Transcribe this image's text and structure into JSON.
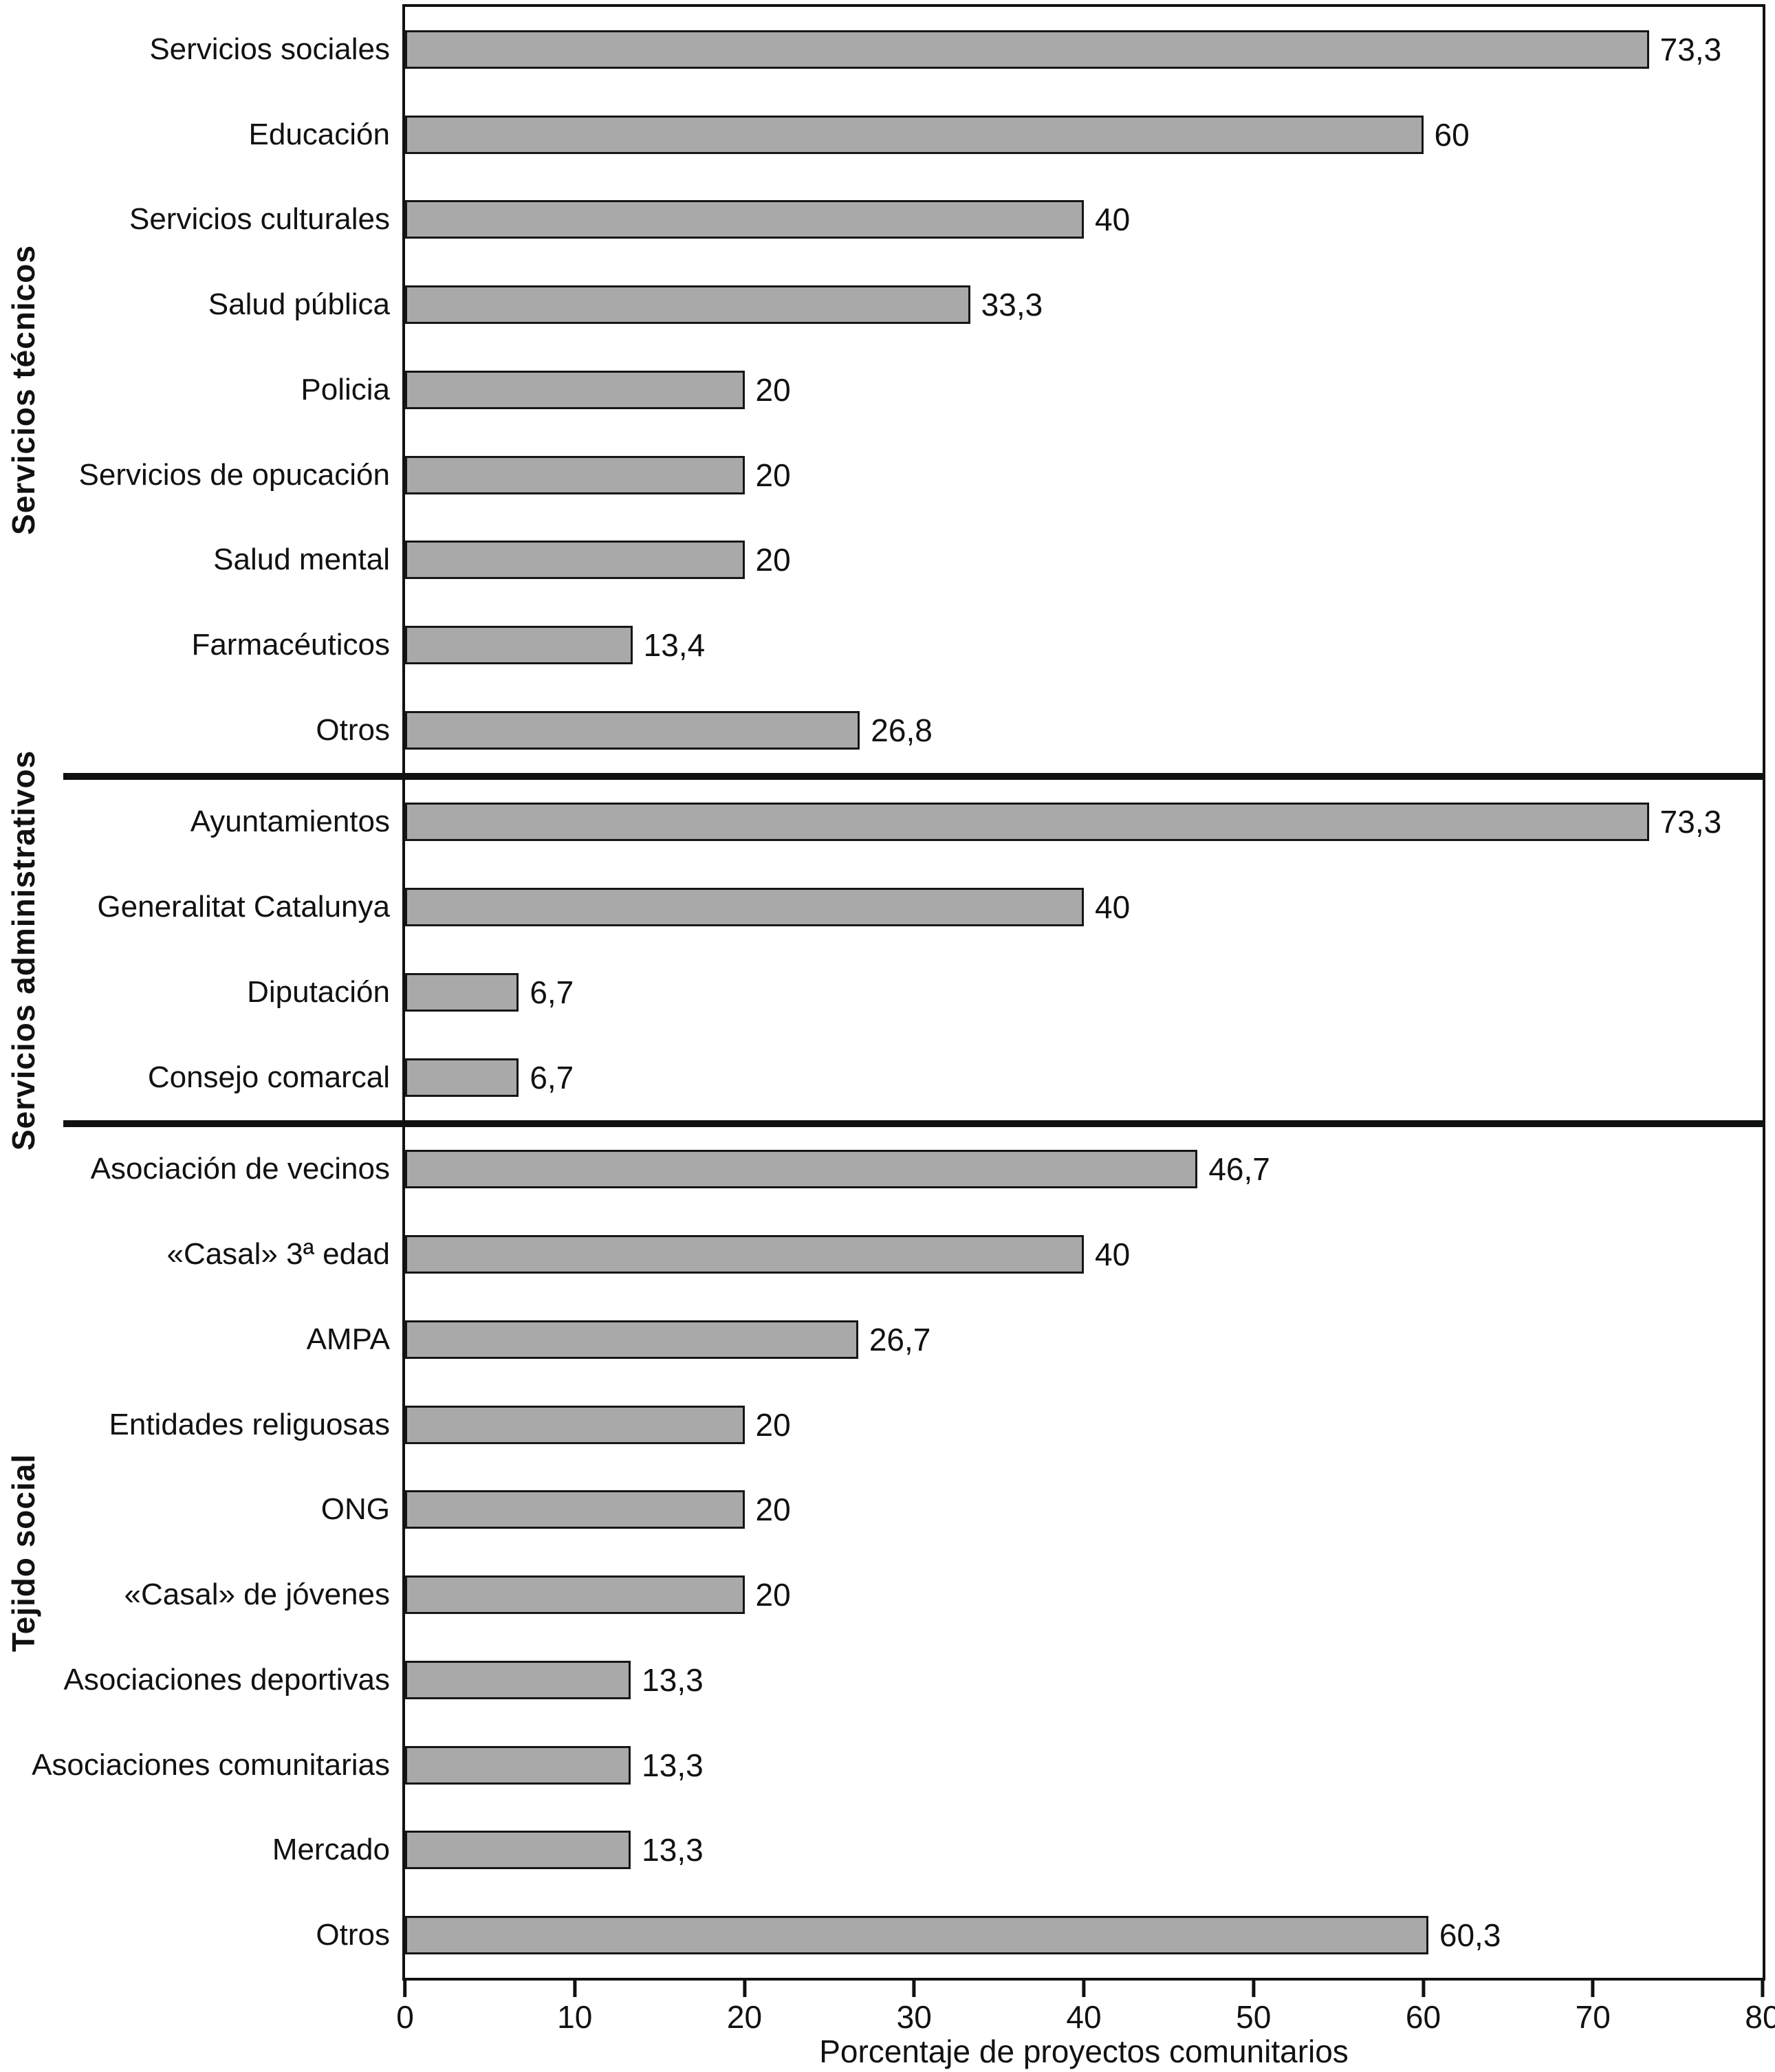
{
  "chart_data": {
    "type": "bar",
    "orientation": "horizontal",
    "title": "",
    "xlabel": "Porcentaje de proyectos comunitarios",
    "ylabel": "",
    "xlim": [
      0,
      80
    ],
    "x_ticks": [
      "0",
      "10",
      "20",
      "30",
      "40",
      "50",
      "60",
      "70",
      "80"
    ],
    "grid": false,
    "legend": false,
    "colors": {
      "bar_fill": "#a9a9a9",
      "bar_border": "#161616",
      "axis": "#111111",
      "text": "#111111",
      "background": "#ffffff"
    },
    "groups": [
      {
        "label": "Servicios técnicos",
        "bars": [
          {
            "label": "Servicios sociales",
            "value": 73.3,
            "display": "73,3"
          },
          {
            "label": "Educación",
            "value": 60,
            "display": "60"
          },
          {
            "label": "Servicios culturales",
            "value": 40,
            "display": "40"
          },
          {
            "label": "Salud pública",
            "value": 33.3,
            "display": "33,3"
          },
          {
            "label": "Policia",
            "value": 20,
            "display": "20"
          },
          {
            "label": "Servicios de opucación",
            "value": 20,
            "display": "20"
          },
          {
            "label": "Salud mental",
            "value": 20,
            "display": "20"
          },
          {
            "label": "Farmacéuticos",
            "value": 13.4,
            "display": "13,4"
          },
          {
            "label": "Otros",
            "value": 26.8,
            "display": "26,8"
          }
        ]
      },
      {
        "label": "Servicios administrativos",
        "bars": [
          {
            "label": "Ayuntamientos",
            "value": 73.3,
            "display": "73,3"
          },
          {
            "label": "Generalitat Catalunya",
            "value": 40,
            "display": "40"
          },
          {
            "label": "Diputación",
            "value": 6.7,
            "display": "6,7"
          },
          {
            "label": "Consejo comarcal",
            "value": 6.7,
            "display": "6,7"
          }
        ]
      },
      {
        "label": "Tejido social",
        "bars": [
          {
            "label": "Asociación de vecinos",
            "value": 46.7,
            "display": "46,7"
          },
          {
            "label": "«Casal» 3ª edad",
            "value": 40,
            "display": "40"
          },
          {
            "label": "AMPA",
            "value": 26.7,
            "display": "26,7"
          },
          {
            "label": "Entidades religuosas",
            "value": 20,
            "display": "20"
          },
          {
            "label": "ONG",
            "value": 20,
            "display": "20"
          },
          {
            "label": "«Casal» de jóvenes",
            "value": 20,
            "display": "20"
          },
          {
            "label": "Asociaciones deportivas",
            "value": 13.3,
            "display": "13,3"
          },
          {
            "label": "Asociaciones comunitarias",
            "value": 13.3,
            "display": "13,3"
          },
          {
            "label": "Mercado",
            "value": 13.3,
            "display": "13,3"
          },
          {
            "label": "Otros",
            "value": 60.3,
            "display": "60,3"
          }
        ]
      }
    ]
  }
}
